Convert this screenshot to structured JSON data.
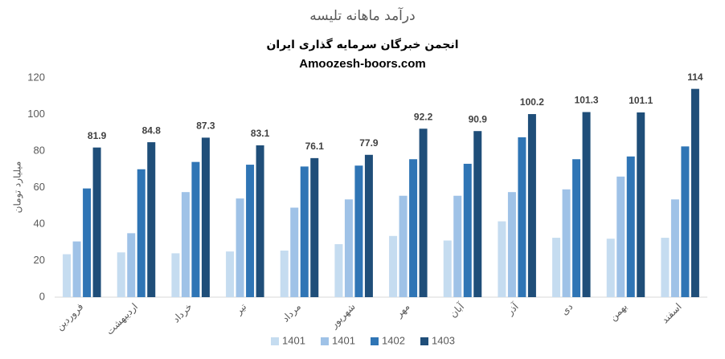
{
  "chart_data": {
    "type": "bar",
    "title": "درآمد ماهانه تلیسه",
    "subtitle": "انجمن خبرگان سرمایه گذاری ایران",
    "source": "Amoozesh-boors.com",
    "y_label": "میلیارد تومان",
    "categories": [
      "فروردین",
      "اردیبهشت",
      "خرداد",
      "تیر",
      "مرداد",
      "شهریور",
      "مهر",
      "آبان",
      "آذر",
      "دی",
      "بهمن",
      "اسفند"
    ],
    "series": [
      {
        "name": "1401",
        "color": "#c5dcf0",
        "values": [
          23.5,
          24.5,
          24,
          25,
          25.5,
          29,
          33.5,
          31,
          41.5,
          32.5,
          32,
          32.5
        ]
      },
      {
        "name": "1401",
        "color": "#9fc2e7",
        "values": [
          30.5,
          35,
          57.5,
          54,
          49,
          53.5,
          55.5,
          55.5,
          57.5,
          59,
          66,
          53.5
        ]
      },
      {
        "name": "1402",
        "color": "#2f75b5",
        "values": [
          59.5,
          70,
          74,
          72.5,
          71.5,
          72,
          75.5,
          73,
          87.5,
          75.5,
          77,
          82.5
        ]
      },
      {
        "name": "1403",
        "color": "#1f4e79",
        "values": [
          81.9,
          84.8,
          87.3,
          83.1,
          76.1,
          77.9,
          92.2,
          90.9,
          100.2,
          101.3,
          101.1,
          114
        ],
        "show_labels": true
      }
    ],
    "ylim": [
      0,
      120
    ],
    "yticks": [
      0,
      20,
      40,
      60,
      80,
      100,
      120
    ],
    "grid": false
  }
}
